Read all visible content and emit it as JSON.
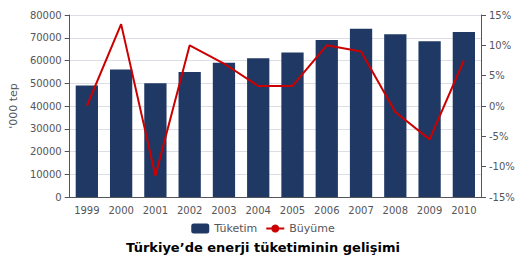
{
  "chart_data": {
    "type": "bar",
    "title": "Türkiye’de enerji tüketiminin gelişimi",
    "categories": [
      "1999",
      "2000",
      "2001",
      "2002",
      "2003",
      "2004",
      "2005",
      "2006",
      "2007",
      "2008",
      "2009",
      "2010"
    ],
    "ylabel": "'000 tep",
    "series": [
      {
        "name": "Tüketim",
        "type": "bar",
        "color": "#1F3864",
        "values": [
          49000,
          56000,
          50000,
          55000,
          59000,
          61000,
          63500,
          69000,
          74000,
          71500,
          68500,
          72500
        ]
      },
      {
        "name": "Büyüme",
        "type": "line",
        "color": "#CC0000",
        "axis": "y2",
        "values": [
          0.0,
          0.135,
          -0.115,
          0.1,
          0.07,
          0.033,
          0.033,
          0.1,
          0.09,
          -0.01,
          -0.055,
          0.075
        ]
      }
    ],
    "ylim": [
      0,
      80000
    ],
    "yticks": [
      0,
      10000,
      20000,
      30000,
      40000,
      50000,
      60000,
      70000,
      80000
    ],
    "y2lim": [
      -0.15,
      0.15
    ],
    "y2ticks": [
      {
        "value": -0.15,
        "label": "-15%"
      },
      {
        "value": -0.1,
        "label": "-10%"
      },
      {
        "value": -0.05,
        "label": "-5%"
      },
      {
        "value": 0.0,
        "label": "0%"
      },
      {
        "value": 0.05,
        "label": "5%"
      },
      {
        "value": 0.1,
        "label": "10%"
      },
      {
        "value": 0.15,
        "label": "15%"
      }
    ],
    "grid": true,
    "legend": "bottom"
  }
}
